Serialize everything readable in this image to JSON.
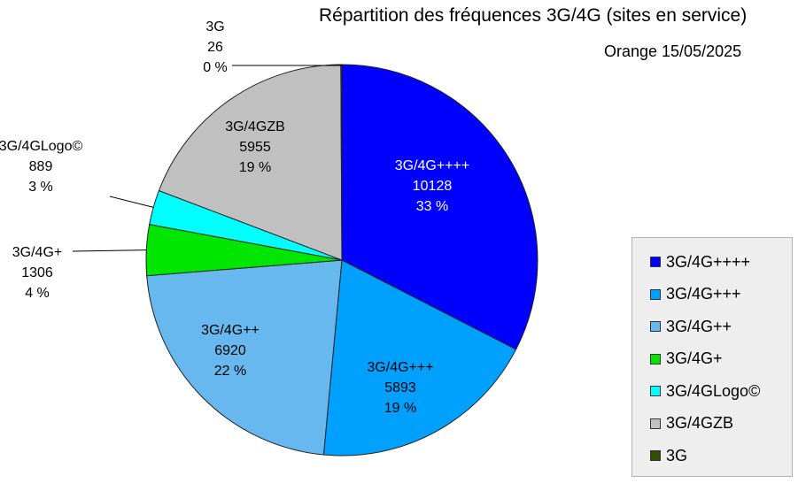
{
  "chart_data": {
    "type": "pie",
    "title": "Répartition des fréquences 3G/4G (sites en service)",
    "subtitle": "Orange 15/05/2025",
    "slices": [
      {
        "label": "3G/4G++++",
        "value": 10128,
        "percent": "33 %",
        "color": "#0000ff"
      },
      {
        "label": "3G/4G+++",
        "value": 5893,
        "percent": "19 %",
        "color": "#00a0ff"
      },
      {
        "label": "3G/4G++",
        "value": 6920,
        "percent": "22 %",
        "color": "#66b8ee"
      },
      {
        "label": "3G/4G+",
        "value": 1306,
        "percent": "4 %",
        "color": "#00e600"
      },
      {
        "label": "3G/4GLogo©",
        "value": 889,
        "percent": "3 %",
        "color": "#00ffff"
      },
      {
        "label": "3G/4GZB",
        "value": 5955,
        "percent": "19 %",
        "color": "#c0c0c0"
      },
      {
        "label": "3G",
        "value": 26,
        "percent": "0 %",
        "color": "#334d00"
      }
    ],
    "legend_position": "right"
  }
}
